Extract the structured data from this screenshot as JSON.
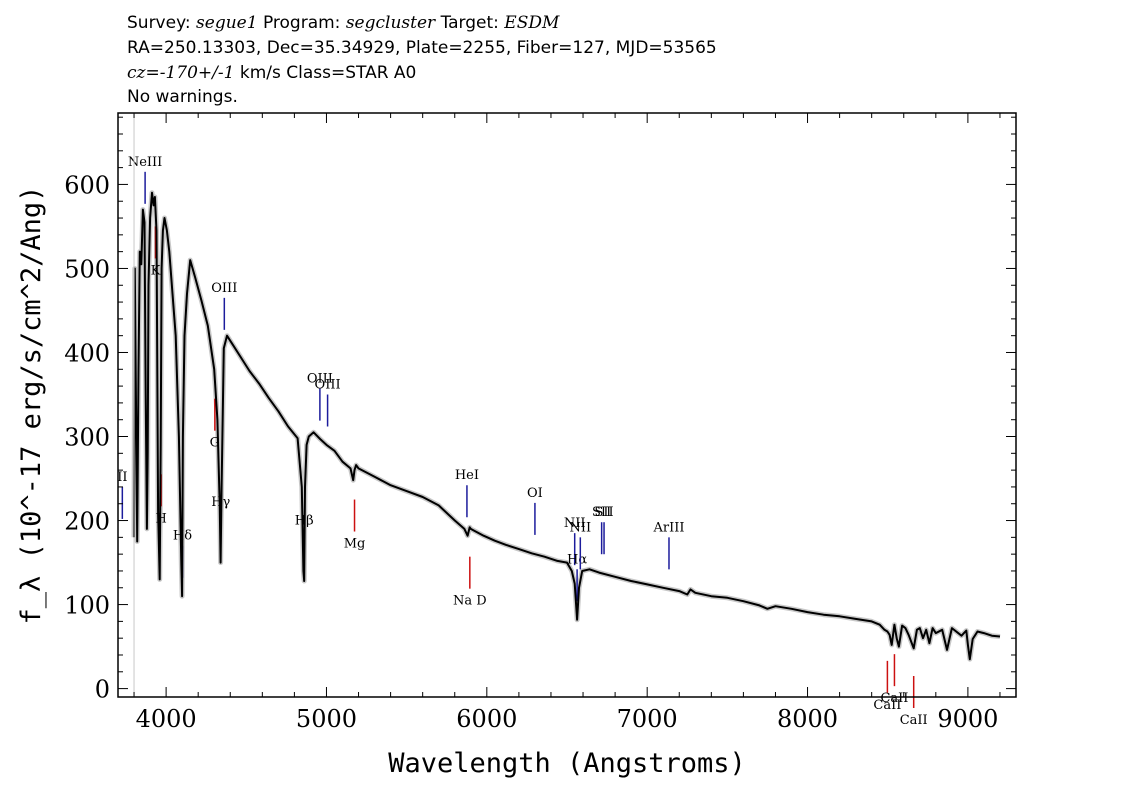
{
  "header": {
    "survey_label": "Survey:",
    "survey": "segue1",
    "program_label": "Program:",
    "program": "segcluster",
    "target_label": "Target:",
    "target": "ESDM",
    "line2": "RA=250.13303, Dec=35.34929, Plate=2255, Fiber=127, MJD=53565",
    "cz": "cz=-170+/-1",
    "cz_units_class": "km/s Class=STAR A0",
    "line4": "No warnings."
  },
  "chart_data": {
    "type": "line",
    "xlabel": "Wavelength (Angstroms)",
    "ylabel": "f_λ (10^-17 erg/s/cm^2/Ang)",
    "xlim": [
      3700,
      9300
    ],
    "ylim": [
      -10,
      685
    ],
    "xticks": [
      4000,
      5000,
      6000,
      7000,
      8000,
      9000
    ],
    "yticks": [
      0,
      100,
      200,
      300,
      400,
      500,
      600
    ],
    "grid": false,
    "line_color": "#000000",
    "error_band_color": "#b0b0b0",
    "emission_line_color": "#1c1c9c",
    "absorption_line_color": "#cc1010",
    "series": [
      {
        "x": [
          3800,
          3805,
          3812,
          3820,
          3828,
          3836,
          3845,
          3855,
          3865,
          3873,
          3880,
          3885,
          3890,
          3900,
          3912,
          3922,
          3930,
          3940,
          3950,
          3960,
          3966,
          3972,
          3980,
          3990,
          4005,
          4020,
          4040,
          4060,
          4080,
          4095,
          4100,
          4105,
          4115,
          4130,
          4150,
          4180,
          4220,
          4260,
          4300,
          4320,
          4334,
          4340,
          4346,
          4360,
          4380,
          4420,
          4470,
          4520,
          4580,
          4640,
          4700,
          4760,
          4820,
          4846,
          4856,
          4861,
          4866,
          4876,
          4890,
          4920,
          4960,
          5000,
          5050,
          5100,
          5150,
          5167,
          5175,
          5185,
          5200,
          5300,
          5400,
          5500,
          5600,
          5700,
          5800,
          5860,
          5880,
          5893,
          5900,
          5920,
          5980,
          6050,
          6120,
          6200,
          6280,
          6360,
          6440,
          6500,
          6530,
          6548,
          6563,
          6575,
          6595,
          6640,
          6700,
          6800,
          6900,
          7000,
          7100,
          7200,
          7250,
          7270,
          7300,
          7400,
          7500,
          7600,
          7700,
          7750,
          7800,
          7900,
          8000,
          8100,
          8200,
          8300,
          8400,
          8450,
          8480,
          8498,
          8512,
          8525,
          8542,
          8556,
          8570,
          8590,
          8610,
          8630,
          8662,
          8682,
          8700,
          8720,
          8740,
          8760,
          8780,
          8800,
          8840,
          8870,
          8900,
          8960,
          8990,
          9000,
          9012,
          9030,
          9060,
          9100,
          9150,
          9200
        ],
        "y": [
          180,
          500,
          340,
          175,
          380,
          520,
          505,
          570,
          555,
          350,
          190,
          280,
          480,
          560,
          590,
          575,
          585,
          545,
          210,
          130,
          290,
          500,
          545,
          560,
          545,
          520,
          470,
          420,
          300,
          150,
          110,
          300,
          420,
          470,
          510,
          490,
          462,
          432,
          380,
          320,
          220,
          150,
          240,
          405,
          420,
          408,
          393,
          378,
          363,
          346,
          330,
          312,
          298,
          240,
          140,
          128,
          240,
          290,
          300,
          305,
          297,
          290,
          283,
          270,
          262,
          248,
          260,
          266,
          262,
          252,
          242,
          235,
          228,
          218,
          200,
          190,
          182,
          192,
          190,
          188,
          182,
          176,
          171,
          166,
          161,
          157,
          152,
          150,
          140,
          125,
          82,
          120,
          140,
          142,
          138,
          133,
          128,
          124,
          120,
          116,
          112,
          118,
          114,
          110,
          108,
          104,
          99,
          95,
          98,
          95,
          91,
          88,
          86,
          83,
          80,
          76,
          70,
          68,
          64,
          52,
          76,
          60,
          50,
          75,
          72,
          64,
          48,
          70,
          72,
          60,
          70,
          54,
          72,
          66,
          70,
          46,
          72,
          63,
          69,
          52,
          35,
          59,
          68,
          66,
          63,
          62
        ]
      }
    ],
    "line_labels": [
      {
        "label": "NeIII",
        "x": 3869,
        "type": "emission"
      },
      {
        "label": "Hδ",
        "x": 4102,
        "type": "emission"
      },
      {
        "label": "Hγ",
        "x": 4341,
        "type": "emission"
      },
      {
        "label": "OIII",
        "x": 4363,
        "type": "emission"
      },
      {
        "label": "Hβ",
        "x": 4861,
        "type": "emission"
      },
      {
        "label": "OIII",
        "x": 4959,
        "type": "emission"
      },
      {
        "label": "OIII",
        "x": 5007,
        "type": "emission"
      },
      {
        "label": "HeI",
        "x": 5876,
        "type": "emission"
      },
      {
        "label": "OI",
        "x": 6300,
        "type": "emission"
      },
      {
        "label": "NII",
        "x": 6548,
        "type": "emission"
      },
      {
        "label": "Hα",
        "x": 6563,
        "type": "emission"
      },
      {
        "label": "NII",
        "x": 6583,
        "type": "emission"
      },
      {
        "label": "SII",
        "x": 6716,
        "type": "emission"
      },
      {
        "label": "SII",
        "x": 6731,
        "type": "emission"
      },
      {
        "label": "ArIII",
        "x": 7136,
        "type": "emission"
      },
      {
        "label": "II",
        "x": 3727,
        "type": "emission"
      },
      {
        "label": "K",
        "x": 3934,
        "type": "absorption"
      },
      {
        "label": "H",
        "x": 3969,
        "type": "absorption"
      },
      {
        "label": "G",
        "x": 4304,
        "type": "absorption"
      },
      {
        "label": "Mg",
        "x": 5175,
        "type": "absorption"
      },
      {
        "label": "Na D",
        "x": 5894,
        "type": "absorption"
      },
      {
        "label": "CaII",
        "x": 8498,
        "type": "absorption"
      },
      {
        "label": "CaII",
        "x": 8542,
        "type": "absorption"
      },
      {
        "label": "CaII",
        "x": 8662,
        "type": "absorption"
      }
    ]
  }
}
